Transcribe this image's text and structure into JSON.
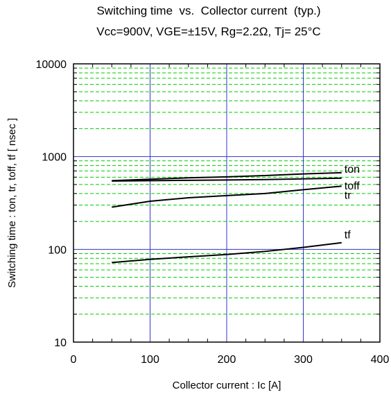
{
  "chart_data": {
    "type": "line",
    "title": "Switching time  vs.  Collector current  (typ.)",
    "subtitle": "Vcc=900V, VGE=±15V, Rg=2.2Ω, Tj= 25°C",
    "xlabel": "Collector current : Ic [A]",
    "ylabel": "Switching time  :  ton, tr, toff, tf  [ nsec ]",
    "xlim": [
      0,
      400
    ],
    "ylim": [
      10,
      10000
    ],
    "yscale": "log",
    "x_ticks": [
      "0",
      "100",
      "200",
      "300",
      "400"
    ],
    "y_ticks": [
      "10",
      "100",
      "1000",
      "10000"
    ],
    "grid": true,
    "series": [
      {
        "name": "ton",
        "x": [
          50,
          100,
          150,
          200,
          250,
          300,
          350
        ],
        "y": [
          550,
          570,
          590,
          605,
          625,
          650,
          670
        ]
      },
      {
        "name": "toff",
        "x": [
          50,
          100,
          150,
          200,
          250,
          300,
          350
        ],
        "y": [
          545,
          550,
          555,
          560,
          565,
          575,
          585
        ]
      },
      {
        "name": "tr",
        "x": [
          50,
          100,
          150,
          200,
          250,
          300,
          350
        ],
        "y": [
          285,
          330,
          360,
          380,
          400,
          440,
          480
        ]
      },
      {
        "name": "tf",
        "x": [
          50,
          100,
          150,
          200,
          250,
          300,
          350
        ],
        "y": [
          72,
          78,
          83,
          88,
          95,
          105,
          118
        ]
      }
    ]
  }
}
